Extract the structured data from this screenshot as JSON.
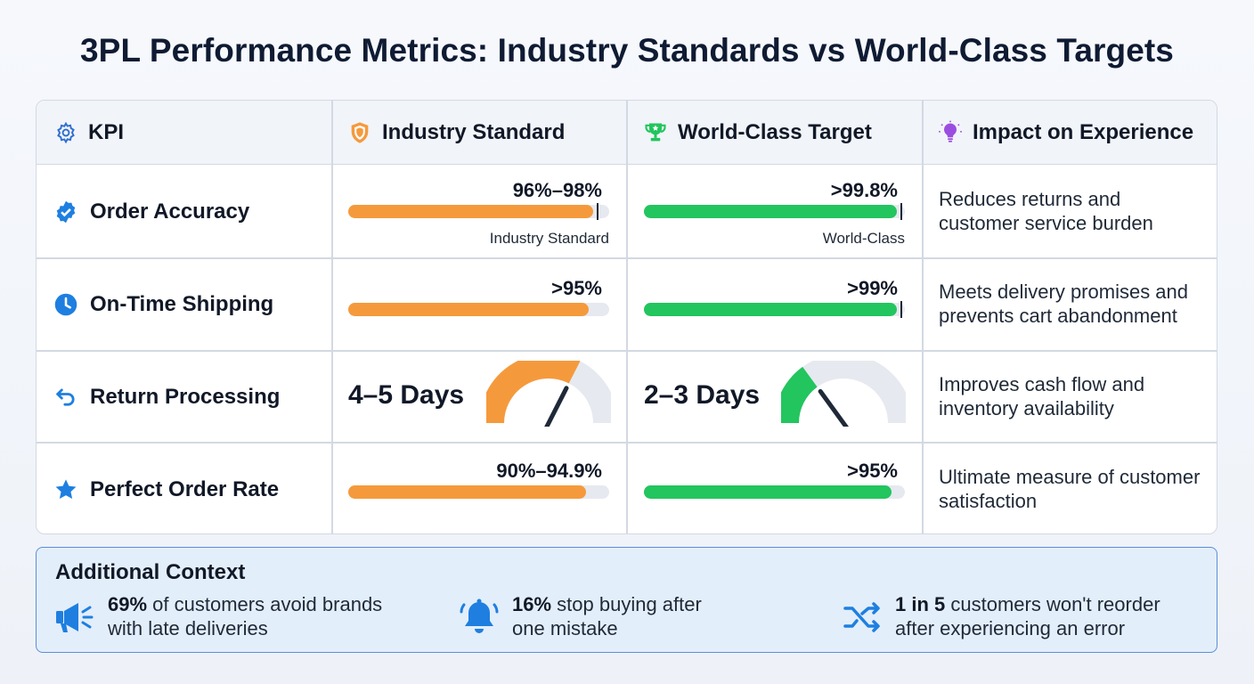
{
  "title": "3PL Performance Metrics: Industry Standards vs World-Class Targets",
  "colors": {
    "industry": "#f59a3c",
    "worldclass": "#22c55e",
    "accent_blue": "#1e7fe0",
    "track": "#e6e9ef"
  },
  "table": {
    "headers": [
      {
        "label": "KPI",
        "icon": "gear-icon"
      },
      {
        "label": "Industry Standard",
        "icon": "shield-icon"
      },
      {
        "label": "World-Class Target",
        "icon": "trophy-icon"
      },
      {
        "label": "Impact on Experience",
        "icon": "lightbulb-icon"
      }
    ],
    "rows": [
      {
        "kpi": "Order Accuracy",
        "icon": "verified-badge-icon",
        "industry": {
          "value": "96%–98%",
          "fill": 0.94,
          "marker": 0.955,
          "caption": "Industry Standard"
        },
        "world": {
          "value": ">99.8%",
          "fill": 0.97,
          "marker": 0.985,
          "caption": "World-Class"
        },
        "impact": "Reduces returns and customer service burden"
      },
      {
        "kpi": "On-Time Shipping",
        "icon": "clock-icon",
        "industry": {
          "value": ">95%",
          "fill": 0.92
        },
        "world": {
          "value": ">99%",
          "fill": 0.97,
          "marker": 0.985
        },
        "impact": "Meets delivery promises and prevents cart abandonment"
      },
      {
        "kpi": "Return Processing",
        "icon": "return-arrow-icon",
        "industry": {
          "days": "4–5 Days",
          "gauge": 0.65
        },
        "world": {
          "days": "2–3 Days",
          "gauge": 0.3
        },
        "impact": "Improves cash flow and inventory availability"
      },
      {
        "kpi": "Perfect Order Rate",
        "icon": "star-icon",
        "industry": {
          "value": "90%–94.9%",
          "fill": 0.91
        },
        "world": {
          "value": ">95%",
          "fill": 0.95
        },
        "impact": "Ultimate measure of customer satisfaction"
      }
    ]
  },
  "context": {
    "title": "Additional Context",
    "items": [
      {
        "icon": "megaphone-icon",
        "strong": "69%",
        "rest": " of customers avoid brands",
        "line2": "with late deliveries"
      },
      {
        "icon": "bell-icon",
        "strong": "16%",
        "rest": " stop buying after",
        "line2": "one mistake"
      },
      {
        "icon": "shuffle-icon",
        "strong": "1 in 5",
        "rest": " customers won't reorder",
        "line2": "after experiencing an error"
      }
    ]
  }
}
